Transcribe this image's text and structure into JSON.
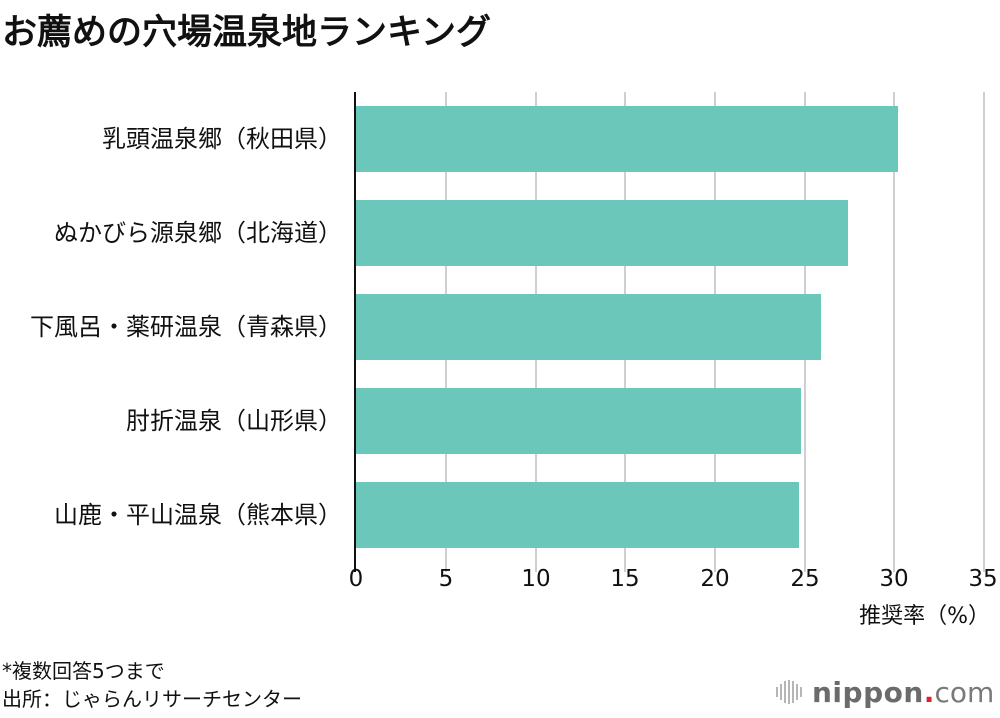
{
  "title": "お薦めの穴場温泉地ランキング",
  "chart_data": {
    "type": "bar",
    "orientation": "horizontal",
    "title": "お薦めの穴場温泉地ランキング",
    "categories": [
      "乳頭温泉郷（秋田県）",
      "ぬかびら源泉郷（北海道）",
      "下風呂・薬研温泉（青森県）",
      "肘折温泉（山形県）",
      "山鹿・平山温泉（熊本県）"
    ],
    "values": [
      30.2,
      27.4,
      25.9,
      24.8,
      24.7
    ],
    "xlabel": "推奨率（%）",
    "ylabel": "",
    "xlim": [
      0,
      35
    ],
    "xticks": [
      "0",
      "5",
      "10",
      "15",
      "20",
      "25",
      "30",
      "35"
    ],
    "grid": true,
    "bar_color": "#6bc7ba",
    "legend": null
  },
  "axis": {
    "ticks": [
      "0",
      "5",
      "10",
      "15",
      "20",
      "25",
      "30",
      "35"
    ],
    "label": "推奨率（%）"
  },
  "notes": {
    "footnote": "*複数回答5つまで",
    "source": "出所：じゃらんリサーチセンター"
  },
  "logo": {
    "brand": "nippon",
    "dot": ".",
    "tld": "com",
    "accent_color": "#e0202a"
  }
}
